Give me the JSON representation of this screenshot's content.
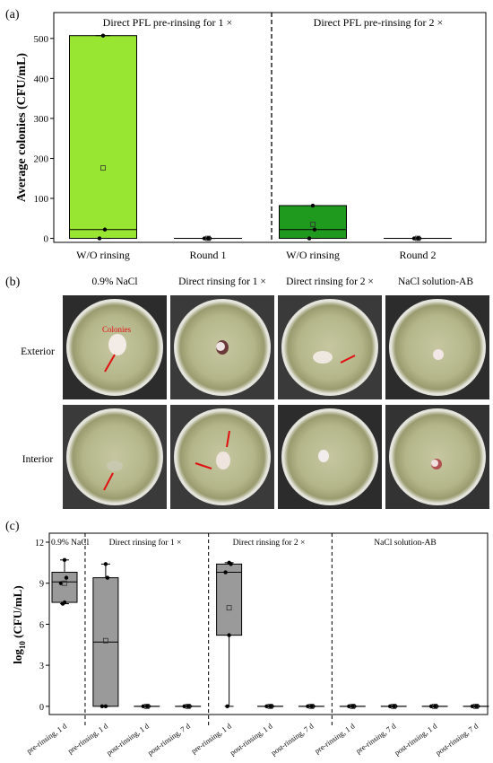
{
  "panel_a": {
    "label": "(a)",
    "ylabel": "Average colonies (CFU/mL)",
    "section_labels": [
      "Direct PFL pre-rinsing for 1 ×",
      "Direct PFL pre-rinsing for 2 ×"
    ]
  },
  "panel_b": {
    "label": "(b)",
    "columns": [
      "0.9% NaCl",
      "Direct rinsing for 1 ×",
      "Direct rinsing for 2 ×",
      "NaCl solution-AB"
    ],
    "rows": [
      "Exterior",
      "Interior"
    ],
    "annotation": "Colonies"
  },
  "panel_c": {
    "label": "(c)",
    "ylabel_main": "log",
    "ylabel_sub": "10",
    "ylabel_tail": " (CFU/mL)",
    "section_labels": [
      "0.9% NaCl",
      "Direct rinsing for 1 ×",
      "Direct rinsing for 2 ×",
      "NaCl solution-AB"
    ]
  },
  "colors": {
    "box_a1": "#99e632",
    "box_a3": "#1f9a1f",
    "box_c": "#9a9a9a",
    "arrow": "#e01010",
    "annotation": "#e01010"
  },
  "chart_data": [
    {
      "type": "box",
      "panel": "a",
      "ylabel": "Average colonies (CFU/mL)",
      "ylim": [
        -10,
        540
      ],
      "yticks": [
        0,
        100,
        200,
        300,
        400,
        500
      ],
      "categories": [
        "W/O rinsing",
        "Round 1",
        "W/O rinsing",
        "Round 2"
      ],
      "boxes": [
        {
          "q1": 0,
          "median": 22,
          "q3": 507,
          "whisker_low": 0,
          "whisker_high": 507,
          "mean": 176,
          "points": [
            507,
            22,
            0
          ],
          "color": "#99e632"
        },
        {
          "q1": 0,
          "median": 0,
          "q3": 0,
          "whisker_low": 0,
          "whisker_high": 0,
          "mean": 0,
          "points": [
            0,
            0,
            0
          ],
          "color": "#ffffff"
        },
        {
          "q1": 0,
          "median": 22,
          "q3": 82,
          "whisker_low": 0,
          "whisker_high": 82,
          "mean": 35,
          "points": [
            82,
            22,
            0
          ],
          "color": "#1f9a1f"
        },
        {
          "q1": 0,
          "median": 0,
          "q3": 0,
          "whisker_low": 0,
          "whisker_high": 0,
          "mean": 0,
          "points": [
            0,
            0,
            0
          ],
          "color": "#ffffff"
        }
      ],
      "divider_after_index": 1,
      "section_labels": [
        "Direct PFL pre-rinsing for 1 ×",
        "Direct PFL pre-rinsing for 2 ×"
      ]
    },
    {
      "type": "box",
      "panel": "c",
      "ylabel": "log10 (CFU/mL)",
      "ylim": [
        -0.6,
        12
      ],
      "yticks": [
        0,
        3,
        6,
        9,
        12
      ],
      "categories": [
        "pre-rinsing, 1 d",
        "pre-rinsing, 1 d",
        "post-rinsing, 1 d",
        "post-rinsing, 7 d",
        "pre-rinsing, 1 d",
        "post-rinsing, 1 d",
        "post-rinsing, 7 d",
        "pre-rinsing, 1 d",
        "pre-rinsing, 7 d",
        "post-rinsing, 1 d",
        "post-rinsing, 7 d"
      ],
      "boxes": [
        {
          "q1": 7.6,
          "median": 9.1,
          "q3": 9.8,
          "whisker_low": 7.5,
          "whisker_high": 10.7,
          "mean": 9.0,
          "points": [
            10.7,
            9.4,
            9.0,
            7.6,
            7.5
          ]
        },
        {
          "q1": 0,
          "median": 4.7,
          "q3": 9.4,
          "whisker_low": 0,
          "whisker_high": 10.4,
          "mean": 4.8,
          "points": [
            10.4,
            9.4,
            0,
            0
          ]
        },
        {
          "q1": 0,
          "median": 0,
          "q3": 0,
          "whisker_low": 0,
          "whisker_high": 0,
          "mean": 0,
          "points": [
            0,
            0,
            0
          ]
        },
        {
          "q1": 0,
          "median": 0,
          "q3": 0,
          "whisker_low": 0,
          "whisker_high": 0,
          "mean": 0,
          "points": [
            0,
            0,
            0
          ]
        },
        {
          "q1": 5.2,
          "median": 9.8,
          "q3": 10.4,
          "whisker_low": 0,
          "whisker_high": 10.5,
          "mean": 7.2,
          "points": [
            10.5,
            10.4,
            9.8,
            5.2,
            0
          ]
        },
        {
          "q1": 0,
          "median": 0,
          "q3": 0,
          "whisker_low": 0,
          "whisker_high": 0,
          "mean": 0,
          "points": [
            0,
            0,
            0
          ]
        },
        {
          "q1": 0,
          "median": 0,
          "q3": 0,
          "whisker_low": 0,
          "whisker_high": 0,
          "mean": 0,
          "points": [
            0,
            0,
            0
          ]
        },
        {
          "q1": 0,
          "median": 0,
          "q3": 0,
          "whisker_low": 0,
          "whisker_high": 0,
          "mean": 0,
          "points": [
            0,
            0,
            0
          ]
        },
        {
          "q1": 0,
          "median": 0,
          "q3": 0,
          "whisker_low": 0,
          "whisker_high": 0,
          "mean": 0,
          "points": [
            0,
            0,
            0
          ]
        },
        {
          "q1": 0,
          "median": 0,
          "q3": 0,
          "whisker_low": 0,
          "whisker_high": 0,
          "mean": 0,
          "points": [
            0,
            0,
            0
          ]
        },
        {
          "q1": 0,
          "median": 0,
          "q3": 0,
          "whisker_low": 0,
          "whisker_high": 0,
          "mean": 0,
          "points": [
            0,
            0,
            0
          ]
        }
      ],
      "dividers_after_index": [
        0,
        3,
        6
      ],
      "section_labels": [
        "0.9% NaCl",
        "Direct rinsing for 1 ×",
        "Direct rinsing for 2 ×",
        "NaCl solution-AB"
      ]
    }
  ]
}
